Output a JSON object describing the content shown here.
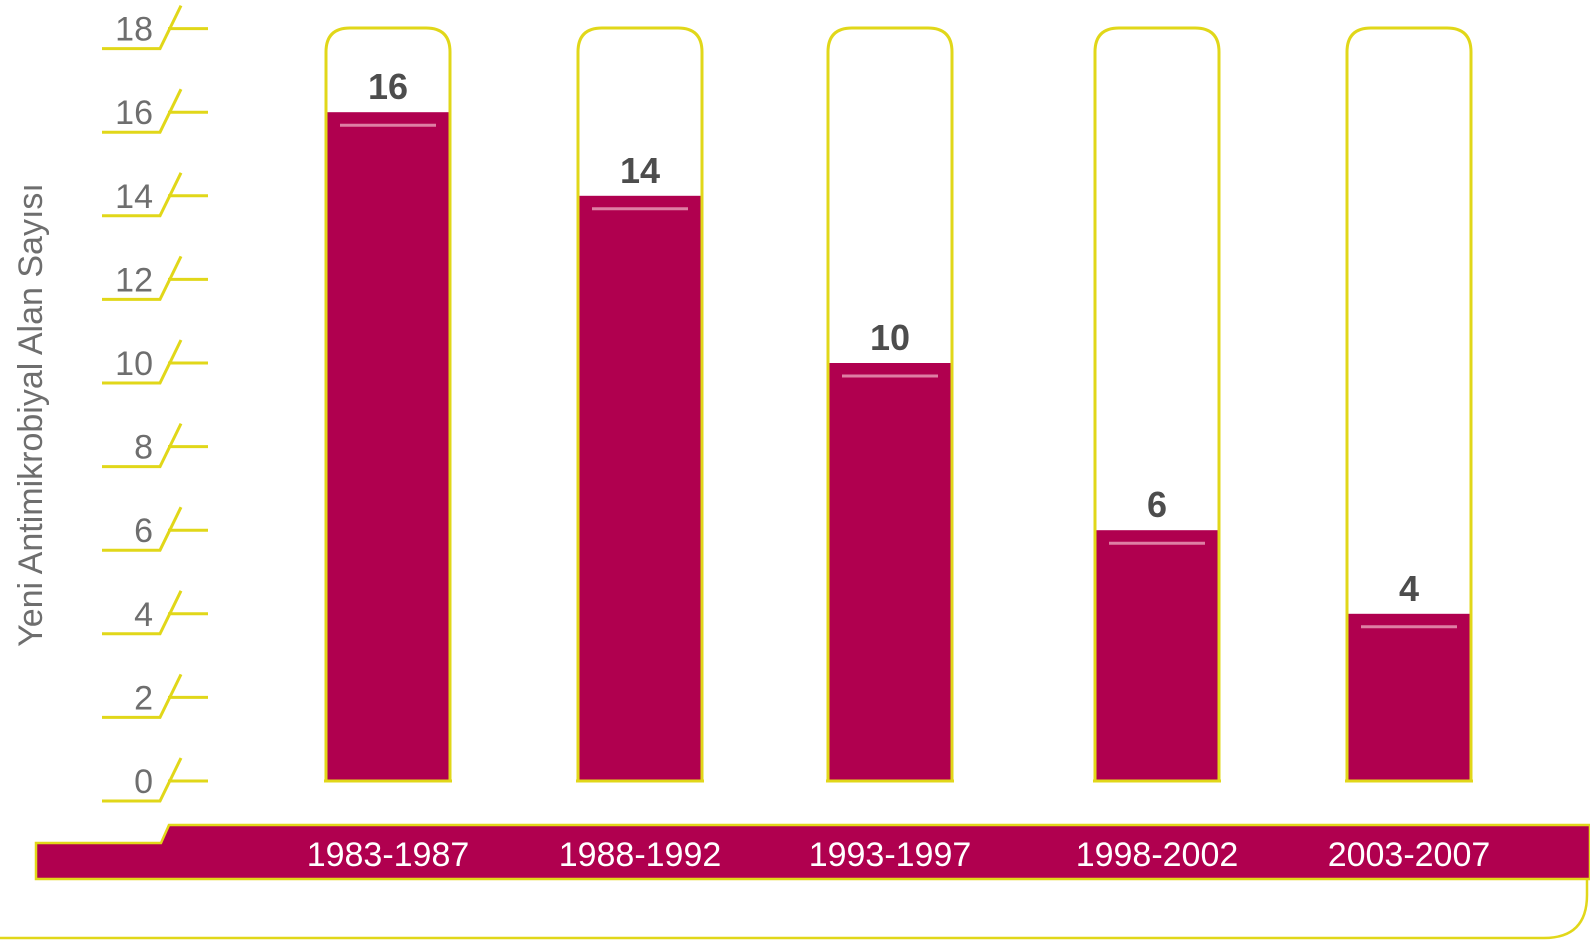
{
  "colors": {
    "bar_fill": "#b0004f",
    "bar_outline": "#e1d719",
    "axis_line": "#e1d719",
    "highlight": "#de7fa4",
    "category_band": "#b0004f",
    "text_gray": "#6e6e6e",
    "value_text": "#4d4d4d"
  },
  "chart_data": {
    "type": "bar",
    "ylabel": "Yeni Antimikrobiyal Alan Sayısı",
    "xlabel": "",
    "ylim": [
      0,
      18
    ],
    "yticks": [
      "0",
      "2",
      "4",
      "6",
      "8",
      "10",
      "12",
      "14",
      "16",
      "18"
    ],
    "categories": [
      "1983-1987",
      "1988-1992",
      "1993-1997",
      "1998-2002",
      "2003-2007"
    ],
    "values": [
      16,
      14,
      10,
      6,
      4
    ],
    "value_labels": [
      "16",
      "14",
      "10",
      "6",
      "4"
    ],
    "grid": false,
    "legend": "none"
  }
}
